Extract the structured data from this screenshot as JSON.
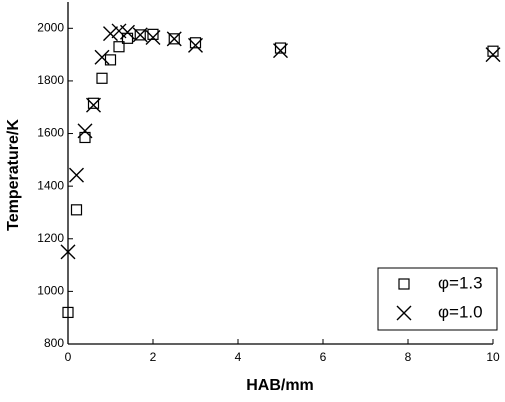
{
  "chart_data": {
    "type": "scatter",
    "x_label": "HAB/mm",
    "y_label": "Temperature/K",
    "x": [
      0,
      0.2,
      0.4,
      0.6,
      0.8,
      1.0,
      1.2,
      1.4,
      1.7,
      2.0,
      2.5,
      3.0,
      5.0,
      10.0
    ],
    "series": [
      {
        "name": "φ=1.3",
        "color": "#000000",
        "marker": "square",
        "values": [
          920,
          1310,
          1585,
          1715,
          1810,
          1880,
          1930,
          1962,
          1975,
          1977,
          1960,
          1945,
          1925,
          1913
        ]
      },
      {
        "name": "φ=1.0",
        "color": "#000000",
        "marker": "cross",
        "values": [
          1150,
          1442,
          1610,
          1708,
          1890,
          1980,
          1990,
          1985,
          1975,
          1965,
          1960,
          1935,
          1915,
          1900
        ]
      }
    ],
    "xlim": [
      0,
      10
    ],
    "xticks": [
      0,
      2,
      4,
      6,
      8,
      10
    ],
    "ylim": [
      800,
      2100
    ],
    "yticks": [
      800,
      1000,
      1200,
      1400,
      1600,
      1800,
      2000
    ],
    "grid": false,
    "legend": "lower right"
  }
}
